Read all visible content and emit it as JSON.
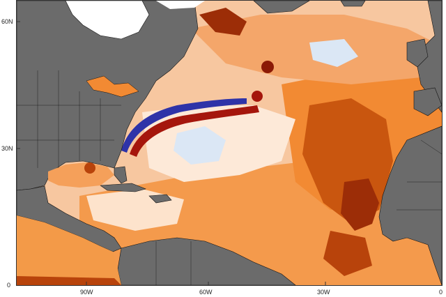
{
  "map": {
    "x_axis": {
      "ticks": [
        {
          "value": -90,
          "label": "90W"
        },
        {
          "value": -60,
          "label": "60W"
        },
        {
          "value": -30,
          "label": "30W"
        },
        {
          "value": 0,
          "label": "0"
        }
      ],
      "range": [
        -100,
        0
      ]
    },
    "y_axis": {
      "ticks": [
        {
          "value": 0,
          "label": "0"
        },
        {
          "value": 30,
          "label": "30N"
        },
        {
          "value": 60,
          "label": "60N"
        }
      ],
      "range": [
        0,
        65
      ]
    },
    "colors": {
      "land": "#6b6b6b",
      "ice": "#ffffff",
      "warm_light": "#fbd7b8",
      "warm": "#f58a2a",
      "warm_dark": "#c0470b",
      "hot": "#8b1a06",
      "cool_light": "#cfe0f3",
      "cool": "#6a8fd0",
      "cold": "#2a2fa0",
      "border": "#111111"
    }
  }
}
